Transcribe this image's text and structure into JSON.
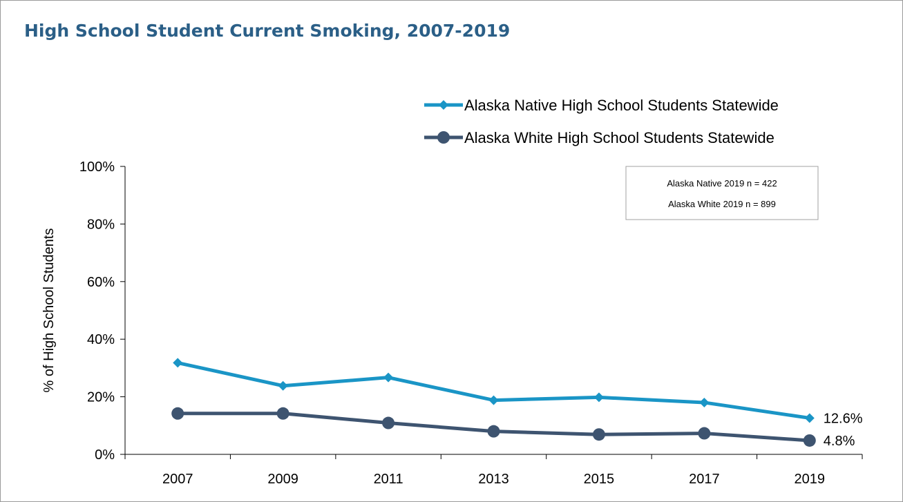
{
  "chart_data": {
    "type": "line",
    "title": "High School Student Current Smoking, 2007-2019",
    "xlabel": "",
    "ylabel": "% of High School Students",
    "x": [
      2007,
      2009,
      2011,
      2013,
      2015,
      2017,
      2019
    ],
    "x_tick_labels": [
      "2007",
      "2009",
      "2011",
      "2013",
      "2015",
      "2017",
      "2019"
    ],
    "ylim": [
      0,
      100
    ],
    "y_ticks": [
      0,
      20,
      40,
      60,
      80,
      100
    ],
    "y_tick_labels": [
      "0%",
      "20%",
      "40%",
      "60%",
      "80%",
      "100%"
    ],
    "grid": false,
    "legend_position": "top-right",
    "series": [
      {
        "name": "Alaska Native High School Students Statewide",
        "values": [
          31.8,
          23.8,
          26.7,
          18.8,
          19.8,
          18.0,
          12.6
        ],
        "color": "#1a95c6",
        "marker": "diamond",
        "end_label": "12.6%"
      },
      {
        "name": "Alaska White High School Students Statewide",
        "values": [
          14.2,
          14.2,
          10.9,
          8.0,
          6.9,
          7.3,
          4.8
        ],
        "color": "#3e5470",
        "marker": "circle",
        "end_label": "4.8%"
      }
    ],
    "annotations": [
      "Alaska Native 2019 n = 422",
      "Alaska White 2019 n = 899"
    ]
  }
}
